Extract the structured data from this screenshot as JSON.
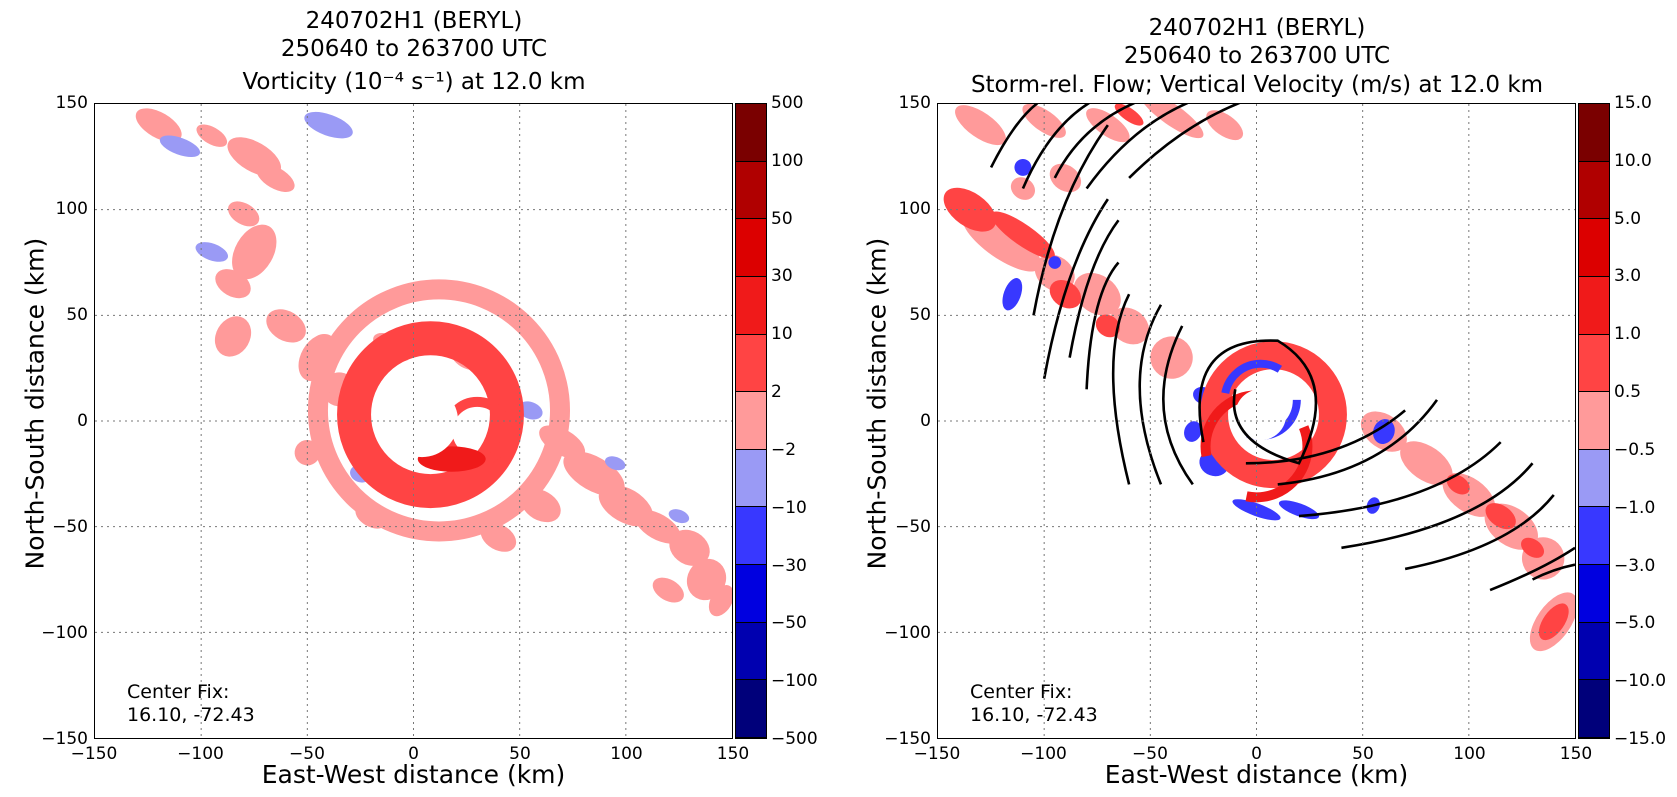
{
  "chart_data": [
    {
      "type": "heatmap",
      "title_lines": [
        "240702H1 (BERYL)",
        "250640 to 263700 UTC"
      ],
      "subtitle": "Vorticity (10⁻⁴ s⁻¹) at 12.0 km",
      "xlabel": "East-West distance (km)",
      "ylabel": "North-South distance (km)",
      "xlim": [
        -150,
        150
      ],
      "ylim": [
        -150,
        150
      ],
      "x_ticks": [
        "−150",
        "−100",
        "−50",
        "0",
        "50",
        "100",
        "150"
      ],
      "y_ticks": [
        "150",
        "100",
        "50",
        "0",
        "−50",
        "−100",
        "−150"
      ],
      "grid": true,
      "annotation": [
        "Center Fix:",
        "16.10, -72.43"
      ],
      "colorbar": {
        "levels": [
          "500",
          "100",
          "50",
          "30",
          "10",
          "2",
          "−2",
          "−10",
          "−30",
          "−50",
          "−100",
          "−500"
        ],
        "colors": [
          "#7a0000",
          "#b00000",
          "#dc0000",
          "#f01a1a",
          "#ff4444",
          "#ff9a9a",
          "#ffffff",
          "#9a9af5",
          "#3838ff",
          "#0000e0",
          "#0000b0",
          "#00007a"
        ]
      }
    },
    {
      "type": "heatmap",
      "title_lines": [
        "240702H1 (BERYL)",
        "250640 to 263700 UTC"
      ],
      "subtitle": "Storm-rel. Flow; Vertical Velocity (m/s) at 12.0 km",
      "xlabel": "East-West distance (km)",
      "ylabel": "North-South distance (km)",
      "xlim": [
        -150,
        150
      ],
      "ylim": [
        -150,
        150
      ],
      "x_ticks": [
        "−150",
        "−100",
        "−50",
        "0",
        "50",
        "100",
        "150"
      ],
      "y_ticks": [
        "150",
        "100",
        "50",
        "0",
        "−50",
        "−100",
        "−150"
      ],
      "grid": true,
      "annotation": [
        "Center Fix:",
        "16.10, -72.43"
      ],
      "colorbar": {
        "levels": [
          "15.0",
          "10.0",
          "5.0",
          "3.0",
          "1.0",
          "0.5",
          "−0.5",
          "−1.0",
          "−3.0",
          "−5.0",
          "−10.0",
          "−15.0"
        ],
        "colors": [
          "#7a0000",
          "#b00000",
          "#dc0000",
          "#f01a1a",
          "#ff4444",
          "#ff9a9a",
          "#ffffff",
          "#9a9af5",
          "#3838ff",
          "#0000e0",
          "#0000b0",
          "#00007a"
        ]
      }
    }
  ]
}
